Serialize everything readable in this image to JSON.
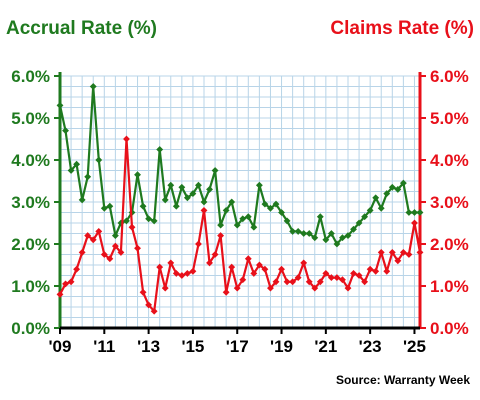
{
  "chart_data": {
    "type": "line",
    "left_axis_title": "Accrual Rate (%)",
    "right_axis_title": "Claims Rate (%)",
    "source": "Source: Warranty Week",
    "ylim": [
      0,
      6
    ],
    "y_ticks": [
      0,
      1,
      2,
      3,
      4,
      5,
      6
    ],
    "left_tick_labels": [
      "0.0%",
      "1.0%",
      "2.0%",
      "3.0%",
      "4.0%",
      "5.0%",
      "6.0%"
    ],
    "right_tick_labels": [
      "0.0%",
      "1.0%",
      "2.0%",
      "3.0%",
      "4.0%",
      "5.0%",
      "6.0%"
    ],
    "x_ticks": [
      2009,
      2011,
      2013,
      2015,
      2017,
      2019,
      2021,
      2023,
      2025
    ],
    "x_tick_labels": [
      "'09",
      "'11",
      "'13",
      "'15",
      "'17",
      "'19",
      "'21",
      "'23",
      "'25"
    ],
    "xlim": [
      2009,
      2025.25
    ],
    "grid": true,
    "colors": {
      "accrual": "#1f7a1f",
      "claims": "#e8101a",
      "grid": "#b8d4e8"
    },
    "series": [
      {
        "name": "Accrual Rate (%)",
        "axis": "left",
        "x": [
          2009.0,
          2009.25,
          2009.5,
          2009.75,
          2010.0,
          2010.25,
          2010.5,
          2010.75,
          2011.0,
          2011.25,
          2011.5,
          2011.75,
          2012.0,
          2012.25,
          2012.5,
          2012.75,
          2013.0,
          2013.25,
          2013.5,
          2013.75,
          2014.0,
          2014.25,
          2014.5,
          2014.75,
          2015.0,
          2015.25,
          2015.5,
          2015.75,
          2016.0,
          2016.25,
          2016.5,
          2016.75,
          2017.0,
          2017.25,
          2017.5,
          2017.75,
          2018.0,
          2018.25,
          2018.5,
          2018.75,
          2019.0,
          2019.25,
          2019.5,
          2019.75,
          2020.0,
          2020.25,
          2020.5,
          2020.75,
          2021.0,
          2021.25,
          2021.5,
          2021.75,
          2022.0,
          2022.25,
          2022.5,
          2022.75,
          2023.0,
          2023.25,
          2023.5,
          2023.75,
          2024.0,
          2024.25,
          2024.5,
          2024.75,
          2025.0,
          2025.25
        ],
        "values": [
          5.3,
          4.7,
          3.75,
          3.9,
          3.05,
          3.6,
          5.75,
          4.0,
          2.85,
          2.9,
          2.2,
          2.5,
          2.55,
          2.75,
          3.65,
          2.9,
          2.6,
          2.55,
          4.25,
          3.05,
          3.4,
          2.9,
          3.35,
          3.1,
          3.2,
          3.4,
          3.0,
          3.3,
          3.75,
          2.45,
          2.8,
          3.0,
          2.45,
          2.6,
          2.65,
          2.4,
          3.4,
          2.95,
          2.85,
          2.95,
          2.75,
          2.55,
          2.3,
          2.3,
          2.25,
          2.25,
          2.15,
          2.65,
          2.1,
          2.25,
          2.0,
          2.15,
          2.2,
          2.35,
          2.5,
          2.65,
          2.8,
          3.1,
          2.85,
          3.2,
          3.35,
          3.3,
          3.45,
          2.75,
          2.75,
          2.75
        ]
      },
      {
        "name": "Claims Rate (%)",
        "axis": "right",
        "x": [
          2009.0,
          2009.25,
          2009.5,
          2009.75,
          2010.0,
          2010.25,
          2010.5,
          2010.75,
          2011.0,
          2011.25,
          2011.5,
          2011.75,
          2012.0,
          2012.25,
          2012.5,
          2012.75,
          2013.0,
          2013.25,
          2013.5,
          2013.75,
          2014.0,
          2014.25,
          2014.5,
          2014.75,
          2015.0,
          2015.25,
          2015.5,
          2015.75,
          2016.0,
          2016.25,
          2016.5,
          2016.75,
          2017.0,
          2017.25,
          2017.5,
          2017.75,
          2018.0,
          2018.25,
          2018.5,
          2018.75,
          2019.0,
          2019.25,
          2019.5,
          2019.75,
          2020.0,
          2020.25,
          2020.5,
          2020.75,
          2021.0,
          2021.25,
          2021.5,
          2021.75,
          2022.0,
          2022.25,
          2022.5,
          2022.75,
          2023.0,
          2023.25,
          2023.5,
          2023.75,
          2024.0,
          2024.25,
          2024.5,
          2024.75,
          2025.0,
          2025.25
        ],
        "values": [
          0.8,
          1.05,
          1.1,
          1.4,
          1.8,
          2.2,
          2.1,
          2.3,
          1.75,
          1.65,
          1.95,
          1.8,
          4.5,
          2.4,
          1.9,
          0.85,
          0.55,
          0.4,
          1.45,
          0.95,
          1.55,
          1.3,
          1.25,
          1.3,
          1.35,
          2.0,
          2.8,
          1.55,
          1.75,
          2.2,
          0.85,
          1.45,
          0.95,
          1.15,
          1.65,
          1.3,
          1.5,
          1.4,
          0.95,
          1.1,
          1.4,
          1.1,
          1.1,
          1.2,
          1.55,
          1.1,
          0.95,
          1.1,
          1.3,
          1.2,
          1.2,
          1.15,
          0.95,
          1.3,
          1.25,
          1.1,
          1.4,
          1.35,
          1.8,
          1.35,
          1.8,
          1.6,
          1.8,
          1.75,
          2.5,
          1.8
        ]
      }
    ]
  }
}
